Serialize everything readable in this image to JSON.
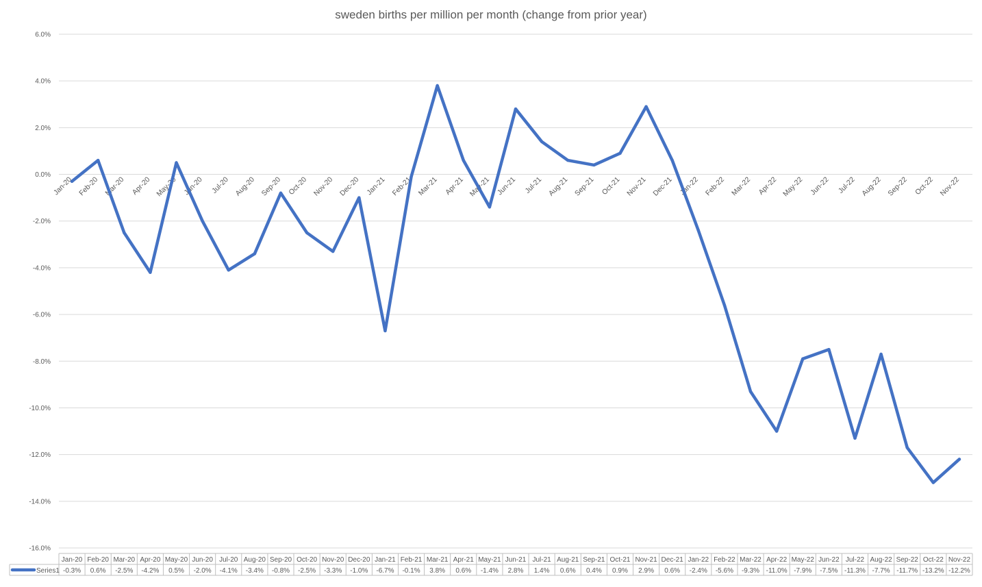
{
  "chart_data": {
    "type": "line",
    "title": "sweden births per million per month (change from prior year)",
    "xlabel": "",
    "ylabel": "",
    "ylim": [
      -16.0,
      6.0
    ],
    "y_ticks": [
      6.0,
      4.0,
      2.0,
      0.0,
      -2.0,
      -4.0,
      -6.0,
      -8.0,
      -10.0,
      -12.0,
      -14.0,
      -16.0
    ],
    "y_tick_labels": [
      "6.0%",
      "4.0%",
      "2.0%",
      "0.0%",
      "-2.0%",
      "-4.0%",
      "-6.0%",
      "-8.0%",
      "-10.0%",
      "-12.0%",
      "-14.0%",
      "-16.0%"
    ],
    "grid": true,
    "legend": "bottom data table",
    "categories": [
      "Jan-20",
      "Feb-20",
      "Mar-20",
      "Apr-20",
      "May-20",
      "Jun-20",
      "Jul-20",
      "Aug-20",
      "Sep-20",
      "Oct-20",
      "Nov-20",
      "Dec-20",
      "Jan-21",
      "Feb-21",
      "Mar-21",
      "Apr-21",
      "May-21",
      "Jun-21",
      "Jul-21",
      "Aug-21",
      "Sep-21",
      "Oct-21",
      "Nov-21",
      "Dec-21",
      "Jan-22",
      "Feb-22",
      "Mar-22",
      "Apr-22",
      "May-22",
      "Jun-22",
      "Jul-22",
      "Aug-22",
      "Sep-22",
      "Oct-22",
      "Nov-22"
    ],
    "series": [
      {
        "name": "Series1",
        "color": "#4472C4",
        "values": [
          -0.3,
          0.6,
          -2.5,
          -4.2,
          0.5,
          -2.0,
          -4.1,
          -3.4,
          -0.8,
          -2.5,
          -3.3,
          -1.0,
          -6.7,
          -0.1,
          3.8,
          0.6,
          -1.4,
          2.8,
          1.4,
          0.6,
          0.4,
          0.9,
          2.9,
          0.6,
          -2.4,
          -5.6,
          -9.3,
          -11.0,
          -7.9,
          -7.5,
          -11.3,
          -7.7,
          -11.7,
          -13.2,
          -12.2
        ],
        "value_labels": [
          "-0.3%",
          "0.6%",
          "-2.5%",
          "-4.2%",
          "0.5%",
          "-2.0%",
          "-4.1%",
          "-3.4%",
          "-0.8%",
          "-2.5%",
          "-3.3%",
          "-1.0%",
          "-6.7%",
          "-0.1%",
          "3.8%",
          "0.6%",
          "-1.4%",
          "2.8%",
          "1.4%",
          "0.6%",
          "0.4%",
          "0.9%",
          "2.9%",
          "0.6%",
          "-2.4%",
          "-5.6%",
          "-9.3%",
          "-11.0%",
          "-7.9%",
          "-7.5%",
          "-11.3%",
          "-7.7%",
          "-11.7%",
          "-13.2%",
          "-12.2%"
        ]
      }
    ],
    "colors": {
      "gridline": "#d9d9d9",
      "axis_text": "#595959",
      "table_border": "#bfbfbf"
    }
  }
}
